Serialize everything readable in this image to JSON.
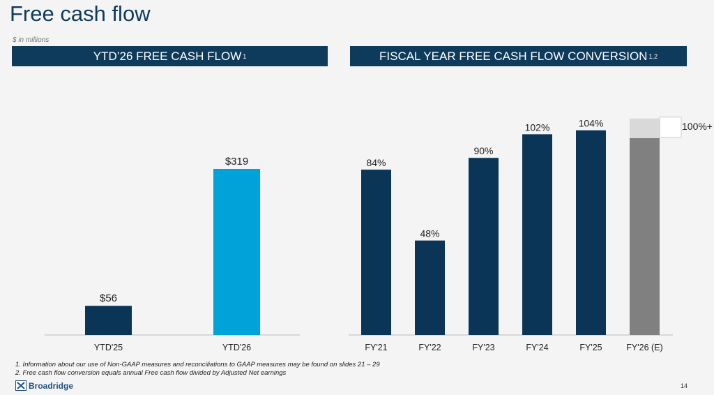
{
  "title": "Free cash flow",
  "units": "$ in millions",
  "footnotes": [
    "1.   Information about our use of Non-GAAP measures and reconciliations to GAAP measures may be found on slides 21 – 29",
    "2.   Free cash flow conversion equals annual Free cash flow divided by Adjusted Net earnings"
  ],
  "logo": "Broadridge",
  "page_number": "14",
  "colors": {
    "navy": "#0b3556",
    "blue": "#00a3d9",
    "estimate": "#808080",
    "estimate_upside": "#d9d9d9"
  },
  "chart_data": [
    {
      "type": "bar",
      "title": "YTD’26 FREE CASH FLOW",
      "title_sup": "1",
      "categories": [
        "YTD'25",
        "YTD'26"
      ],
      "values": [
        56,
        319
      ],
      "labels": [
        "$56",
        "$319"
      ],
      "ylim": [
        0,
        319
      ]
    },
    {
      "type": "bar",
      "title": "FISCAL YEAR FREE CASH FLOW CONVERSION",
      "title_sup": "1,2",
      "categories": [
        "FY'21",
        "FY'22",
        "FY'23",
        "FY'24",
        "FY'25",
        "FY'26 (E)"
      ],
      "values": [
        84,
        48,
        90,
        102,
        104,
        100
      ],
      "labels": [
        "84%",
        "48%",
        "90%",
        "102%",
        "104%",
        ""
      ],
      "estimate_upside": {
        "low": 100,
        "high": 110,
        "label": "100%+"
      },
      "ylim": [
        0,
        104
      ]
    }
  ]
}
